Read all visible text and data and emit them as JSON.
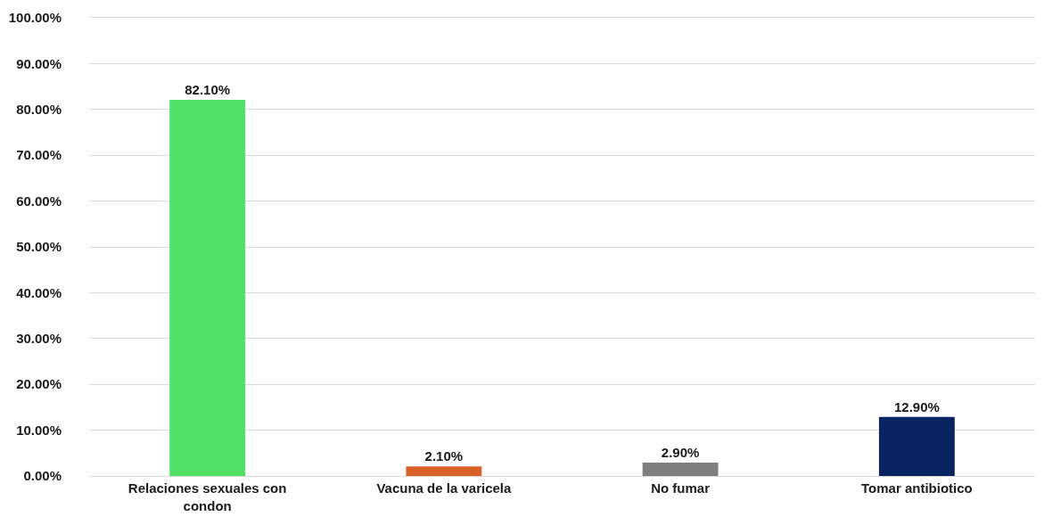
{
  "chart_data": {
    "type": "bar",
    "categories": [
      "Relaciones sexuales con condon",
      "Vacuna de la varicela",
      "No fumar",
      "Tomar antibiotico"
    ],
    "values": [
      82.1,
      2.1,
      2.9,
      12.9
    ],
    "colors": [
      "#4fe065",
      "#d9622b",
      "#7f7f7f",
      "#0a2463"
    ],
    "value_labels": [
      "82.10%",
      "2.10%",
      "2.90%",
      "12.90%"
    ],
    "ylim": [
      0,
      100
    ],
    "yticks": [
      {
        "value": 0,
        "label": "0.00%"
      },
      {
        "value": 10,
        "label": "10.00%"
      },
      {
        "value": 20,
        "label": "20.00%"
      },
      {
        "value": 30,
        "label": "30.00%"
      },
      {
        "value": 40,
        "label": "40.00%"
      },
      {
        "value": 50,
        "label": "50.00%"
      },
      {
        "value": 60,
        "label": "60.00%"
      },
      {
        "value": 70,
        "label": "70.00%"
      },
      {
        "value": 80,
        "label": "80.00%"
      },
      {
        "value": 90,
        "label": "90.00%"
      },
      {
        "value": 100,
        "label": "100.00%"
      }
    ],
    "grid": "y"
  }
}
